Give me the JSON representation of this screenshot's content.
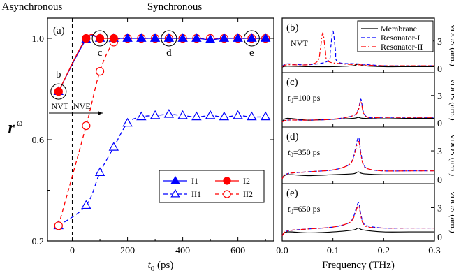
{
  "chart_data": [
    {
      "panel": "(a)",
      "type": "line",
      "xlabel_main": "t",
      "xlabel_sub": "0",
      "xlabel_unit": " (ps)",
      "ylabel_main": "r",
      "ylabel_sub": "ω",
      "xlim": [
        -90,
        730
      ],
      "ylim": [
        0.2,
        1.08
      ],
      "xticks": [
        0,
        200,
        400,
        600
      ],
      "yticks": [
        0.2,
        0.6,
        1.0
      ],
      "ytick_labels": [
        "0.2",
        "0.6",
        "1.0"
      ],
      "top_labels": {
        "left": "Asynchronous",
        "right": "Synchronous"
      },
      "phase_labels": {
        "left": "NVT",
        "right": "NVE"
      },
      "point_labels": [
        {
          "text": "b",
          "x": -50,
          "y": 0.79,
          "circled": true
        },
        {
          "text": "c",
          "x": 100,
          "y": 1.0,
          "circled": true
        },
        {
          "text": "d",
          "x": 350,
          "y": 1.0,
          "circled": true
        },
        {
          "text": "e",
          "x": 650,
          "y": 1.0,
          "circled": true
        }
      ],
      "legend": [
        {
          "name": "I1",
          "marker": "triangle-filled",
          "color": "#0000ff",
          "line": "solid"
        },
        {
          "name": "I2",
          "marker": "circle-filled",
          "color": "#ff0000",
          "line": "solid"
        },
        {
          "name": "II1",
          "marker": "triangle-open",
          "color": "#0000ff",
          "line": "dashed"
        },
        {
          "name": "II2",
          "marker": "circle-open",
          "color": "#ff0000",
          "line": "dashed"
        }
      ],
      "series": [
        {
          "name": "I1",
          "x": [
            -50,
            50,
            100,
            150,
            200,
            250,
            300,
            350,
            400,
            450,
            500,
            550,
            600,
            650,
            700
          ],
          "y": [
            0.79,
            0.995,
            1.0,
            1.0,
            1.0,
            1.0,
            1.0,
            1.0,
            1.0,
            1.0,
            0.995,
            1.0,
            1.0,
            1.0,
            1.0
          ]
        },
        {
          "name": "I2",
          "x": [
            -50,
            50,
            100,
            150
          ],
          "y": [
            0.79,
            1.0,
            1.0,
            1.0
          ]
        },
        {
          "name": "II1",
          "x": [
            -50,
            50,
            100,
            150,
            200,
            250,
            300,
            350,
            400,
            450,
            500,
            550,
            600,
            650,
            700
          ],
          "y": [
            0.26,
            0.34,
            0.47,
            0.57,
            0.665,
            0.69,
            0.695,
            0.7,
            0.695,
            0.69,
            0.695,
            0.69,
            0.695,
            0.69,
            0.69
          ]
        },
        {
          "name": "II2",
          "x": [
            -50,
            50,
            100,
            150,
            200,
            250,
            300,
            350,
            400,
            450,
            500,
            550,
            600,
            650,
            700
          ],
          "y": [
            0.26,
            0.655,
            0.87,
            0.985,
            1.0,
            1.0,
            1.0,
            1.0,
            1.0,
            1.0,
            1.0,
            1.0,
            1.0,
            1.0,
            1.0
          ]
        }
      ]
    },
    {
      "type": "line",
      "xlabel": "Frequency (THz)",
      "ylabel": "vDOS (arb.)",
      "xlim": [
        0,
        0.3
      ],
      "xticks": [
        0.0,
        0.1,
        0.2,
        0.3
      ],
      "xtick_labels": [
        "0.0",
        "0.1",
        "0.2",
        "0.3"
      ],
      "yticks": [
        3,
        6
      ],
      "legend": [
        {
          "name": "Membrane",
          "color": "#000000",
          "line": "solid"
        },
        {
          "name": "Resonator-I",
          "color": "#0000ff",
          "line": "dashed"
        },
        {
          "name": "Resonator-II",
          "color": "#ff0000",
          "line": "dashdot"
        }
      ],
      "panels": [
        {
          "tag": "(b)",
          "label": "NVT",
          "sub": "",
          "series": [
            {
              "name": "Membrane",
              "x": [
                0,
                0.01,
                0.05,
                0.1,
                0.14,
                0.15,
                0.16,
                0.2,
                0.25,
                0.3
              ],
              "y": [
                0.15,
                0.25,
                0.2,
                0.2,
                0.3,
                0.5,
                0.3,
                0.2,
                0.2,
                0.2
              ]
            },
            {
              "name": "Resonator-I",
              "x": [
                0,
                0.01,
                0.05,
                0.09,
                0.095,
                0.1,
                0.105,
                0.11,
                0.15,
                0.2,
                0.25,
                0.3
              ],
              "y": [
                0.2,
                0.5,
                0.4,
                0.8,
                2.0,
                4.1,
                2.0,
                0.7,
                0.5,
                0.3,
                0.3,
                0.3
              ]
            },
            {
              "name": "Resonator-II",
              "x": [
                0,
                0.01,
                0.05,
                0.07,
                0.075,
                0.08,
                0.085,
                0.09,
                0.12,
                0.15,
                0.2,
                0.25,
                0.3
              ],
              "y": [
                0.2,
                0.4,
                0.4,
                0.8,
                2.0,
                3.9,
                2.0,
                0.8,
                0.5,
                0.4,
                0.3,
                0.3,
                0.3
              ]
            }
          ]
        },
        {
          "tag": "(c)",
          "label": "=100 ps",
          "sub": "0",
          "series": [
            {
              "name": "Membrane",
              "x": [
                0,
                0.01,
                0.05,
                0.1,
                0.14,
                0.15,
                0.16,
                0.2,
                0.25,
                0.3
              ],
              "y": [
                0.1,
                0.5,
                0.3,
                0.4,
                0.5,
                0.6,
                0.5,
                0.45,
                0.5,
                0.5
              ]
            },
            {
              "name": "Resonator-I",
              "x": [
                0,
                0.01,
                0.05,
                0.1,
                0.14,
                0.15,
                0.155,
                0.16,
                0.17,
                0.2,
                0.25,
                0.3
              ],
              "y": [
                0.1,
                0.3,
                0.3,
                0.4,
                0.8,
                1.5,
                2.6,
                1.2,
                0.6,
                0.6,
                0.6,
                0.6
              ]
            },
            {
              "name": "Resonator-II",
              "x": [
                0,
                0.01,
                0.05,
                0.1,
                0.14,
                0.15,
                0.155,
                0.16,
                0.17,
                0.2,
                0.25,
                0.3
              ],
              "y": [
                0.1,
                0.3,
                0.3,
                0.4,
                0.8,
                1.4,
                2.4,
                1.1,
                0.6,
                0.6,
                0.6,
                0.6
              ]
            }
          ]
        },
        {
          "tag": "(d)",
          "label": "=350 ps",
          "sub": "0",
          "series": [
            {
              "name": "Membrane",
              "x": [
                0,
                0.01,
                0.05,
                0.1,
                0.14,
                0.15,
                0.16,
                0.2,
                0.25,
                0.3
              ],
              "y": [
                0.1,
                0.5,
                0.4,
                0.5,
                0.6,
                0.8,
                0.6,
                0.5,
                0.5,
                0.5
              ]
            },
            {
              "name": "Resonator-I",
              "x": [
                0,
                0.01,
                0.05,
                0.1,
                0.13,
                0.14,
                0.15,
                0.155,
                0.16,
                0.17,
                0.2,
                0.25,
                0.3
              ],
              "y": [
                0.1,
                0.6,
                0.8,
                1.0,
                1.5,
                2.3,
                4.4,
                2.8,
                1.6,
                1.1,
                0.9,
                0.9,
                0.9
              ]
            },
            {
              "name": "Resonator-II",
              "x": [
                0,
                0.01,
                0.05,
                0.1,
                0.13,
                0.14,
                0.15,
                0.155,
                0.16,
                0.17,
                0.2,
                0.25,
                0.3
              ],
              "y": [
                0.1,
                0.6,
                0.8,
                1.0,
                1.5,
                2.2,
                4.0,
                2.6,
                1.5,
                1.1,
                0.9,
                0.9,
                0.9
              ]
            }
          ]
        },
        {
          "tag": "(e)",
          "label": "=650 ps",
          "sub": "0",
          "series": [
            {
              "name": "Membrane",
              "x": [
                0,
                0.01,
                0.05,
                0.1,
                0.14,
                0.15,
                0.16,
                0.2,
                0.25,
                0.3
              ],
              "y": [
                0.1,
                0.5,
                0.4,
                0.5,
                0.7,
                0.9,
                0.7,
                0.5,
                0.5,
                0.5
              ]
            },
            {
              "name": "Resonator-I",
              "x": [
                0,
                0.01,
                0.05,
                0.1,
                0.13,
                0.14,
                0.15,
                0.155,
                0.16,
                0.17,
                0.2,
                0.25,
                0.3
              ],
              "y": [
                0.1,
                0.6,
                0.8,
                1.0,
                1.4,
                2.0,
                3.5,
                2.3,
                1.4,
                1.1,
                0.9,
                0.9,
                0.9
              ]
            },
            {
              "name": "Resonator-II",
              "x": [
                0,
                0.01,
                0.05,
                0.1,
                0.13,
                0.14,
                0.15,
                0.155,
                0.16,
                0.17,
                0.2,
                0.25,
                0.3
              ],
              "y": [
                0.1,
                0.6,
                0.8,
                1.0,
                1.4,
                1.9,
                3.2,
                2.1,
                1.3,
                1.0,
                0.9,
                0.9,
                0.9
              ]
            }
          ]
        }
      ]
    }
  ]
}
